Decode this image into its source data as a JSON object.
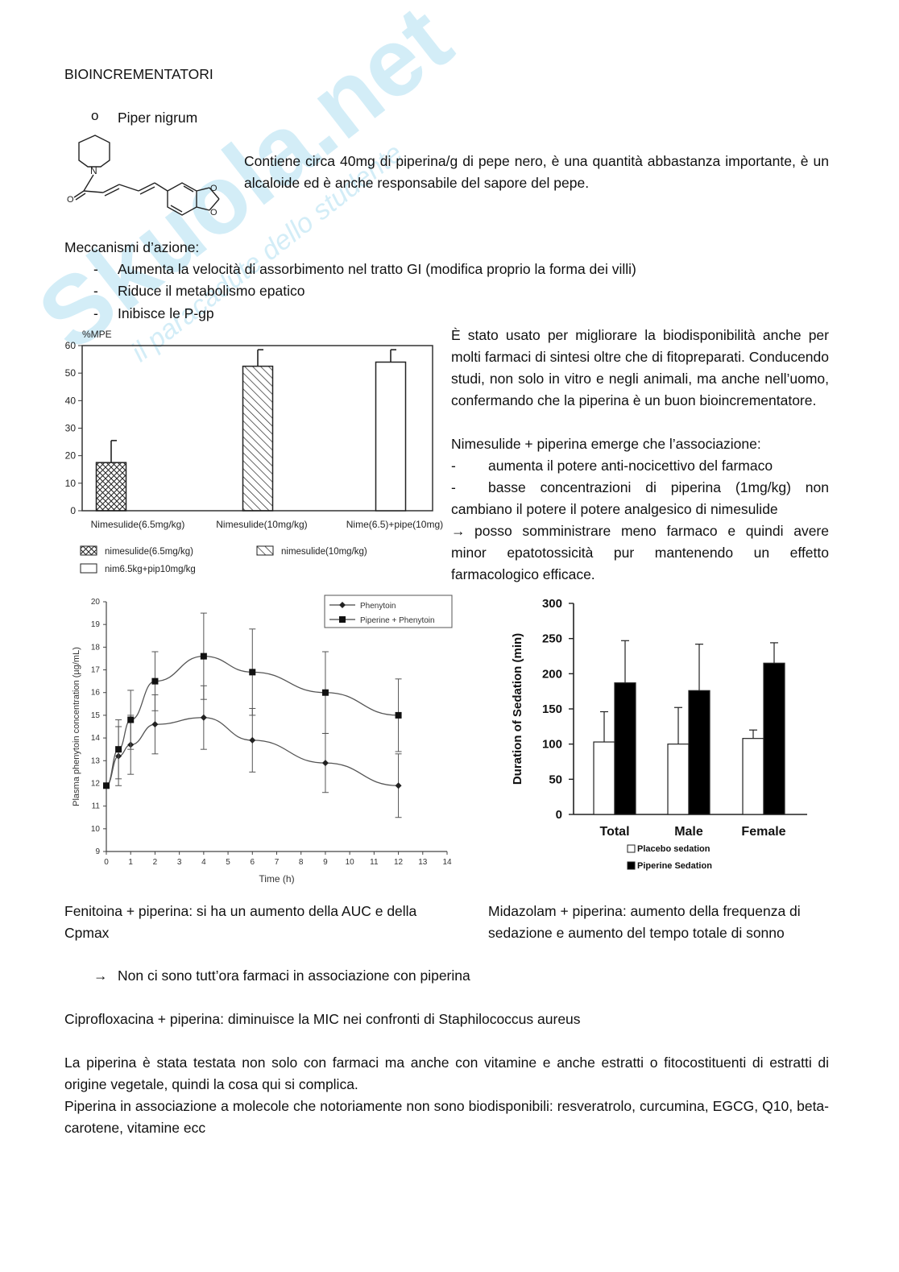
{
  "title": "BIOINCREMENTATORI",
  "bullet_mark": "o",
  "bullet_heading": "Piper nigrum",
  "intro": "Contiene circa 40mg di piperina/g di pepe nero, è una quantità abbastanza importante, è un alcaloide ed è anche responsabile del sapore del pepe.",
  "mechanisms_heading": "Meccanismi d’azione:",
  "dash": "-",
  "mechanisms": [
    "Aumenta la velocità di assorbimento nel tratto GI (modifica proprio la forma dei villi)",
    "Riduce il metabolismo epatico",
    "Inibisce le P-gp"
  ],
  "right_para1": "È stato usato per migliorare la biodisponibilità anche per molti farmaci di sintesi oltre che di fitopreparati. Conducendo studi, non solo in vitro e negli animali, ma anche nell’uomo, confermando che la piperina è un buon bioincrementatore.",
  "nimesulide_intro": "Nimesulide + piperina emerge che l’associazione:",
  "nimesulide_points": [
    "aumenta il potere anti-nocicettivo del farmaco",
    "basse concentrazioni di piperina (1mg/kg) non cambiano il potere il potere analgesico di nimesulide"
  ],
  "arrow": "→",
  "nimesulide_conclusion": "posso somministrare meno farmaco e quindi avere minor epatotossicità pur mantenendo un effetto farmacologico efficace.",
  "caption_phenytoin": "Fenitoina + piperina: si ha un aumento della AUC e della Cpmax",
  "caption_midazolam": "Midazolam + piperina: aumento della frequenza di sedazione e aumento del tempo totale di sonno",
  "arrow_note": "Non ci sono tutt’ora farmaci in associazione con piperina",
  "cipro": "Ciprofloxacina + piperina: diminuisce la MIC nei confronti di Staphilococcus aureus",
  "para_last1": "La piperina è stata testata non solo con farmaci ma anche con vitamine e anche estratti o fitocostituenti di estratti di origine vegetale, quindi la cosa qui si complica.",
  "para_last2": "Piperina in associazione a molecole che notoriamente non sono biodisponibili: resveratrolo, curcumina, EGCG, Q10, beta-carotene, vitamine ecc",
  "structure": {
    "atom_n": "N",
    "atom_o": "O"
  },
  "watermark": {
    "text": "Skuola.net",
    "subtext": "il paracadute dello studente"
  },
  "chart_data": [
    {
      "type": "bar",
      "ylabel": "%MPE",
      "categories": [
        "Nimesulide(6.5mg/kg)",
        "Nimesulide(10mg/kg)",
        "Nime(6.5)+pipe(10mg)"
      ],
      "values": [
        17.5,
        52.5,
        54
      ],
      "errors": [
        8,
        6,
        4.5
      ],
      "patterns": [
        "crosshatch",
        "diagonal",
        "white"
      ],
      "ylim": [
        0,
        60
      ],
      "yticks": [
        "0",
        "10",
        "20",
        "30",
        "40",
        "50",
        "60"
      ],
      "legend": [
        {
          "label": "nimesulide(6.5mg/kg)",
          "pattern": "crosshatch"
        },
        {
          "label": "nimesulide(10mg/kg)",
          "pattern": "diagonal"
        },
        {
          "label": "nim6.5kg+pip10mg/kg",
          "pattern": "white"
        }
      ],
      "legend_placement": "bottom"
    },
    {
      "type": "line",
      "xlabel": "Time (h)",
      "ylabel": "Plasma phenytoin concentration (µg/mL)",
      "xlim": [
        0,
        14
      ],
      "ylim": [
        9,
        20
      ],
      "xticks": [
        "0",
        "1",
        "2",
        "3",
        "4",
        "5",
        "6",
        "7",
        "8",
        "9",
        "10",
        "11",
        "12",
        "13",
        "14"
      ],
      "yticks": [
        "9",
        "10",
        "11",
        "12",
        "13",
        "14",
        "15",
        "16",
        "17",
        "18",
        "19",
        "20"
      ],
      "legend_placement": "top-right",
      "series": [
        {
          "name": "Phenytoin",
          "marker": "diamond",
          "x": [
            0,
            0.5,
            1,
            2,
            4,
            6,
            9,
            12
          ],
          "y": [
            11.9,
            13.2,
            13.7,
            14.6,
            14.9,
            13.9,
            12.9,
            11.9
          ],
          "err": [
            0,
            1.3,
            1.3,
            1.3,
            1.4,
            1.4,
            1.3,
            1.4
          ]
        },
        {
          "name": "Piperine + Phenytoin",
          "marker": "square",
          "x": [
            0,
            0.5,
            1,
            2,
            4,
            6,
            9,
            12
          ],
          "y": [
            11.9,
            13.5,
            14.8,
            16.5,
            17.6,
            16.9,
            16.0,
            15.0
          ],
          "err": [
            0,
            1.3,
            1.3,
            1.3,
            1.9,
            1.9,
            1.8,
            1.6
          ]
        }
      ]
    },
    {
      "type": "bar",
      "ylabel": "Duration of Sedation (min)",
      "categories": [
        "Total",
        "Male",
        "Female"
      ],
      "ylim": [
        0,
        300
      ],
      "yticks": [
        "0",
        "50",
        "100",
        "150",
        "200",
        "250",
        "300"
      ],
      "legend_placement": "bottom",
      "series": [
        {
          "name": "Placebo sedation",
          "color": "#ffffff",
          "values": [
            103,
            100,
            108
          ],
          "errors": [
            43,
            52,
            12
          ]
        },
        {
          "name": "Piperine Sedation",
          "color": "#000000",
          "values": [
            187,
            176,
            215
          ],
          "errors": [
            60,
            66,
            29
          ]
        }
      ]
    }
  ]
}
